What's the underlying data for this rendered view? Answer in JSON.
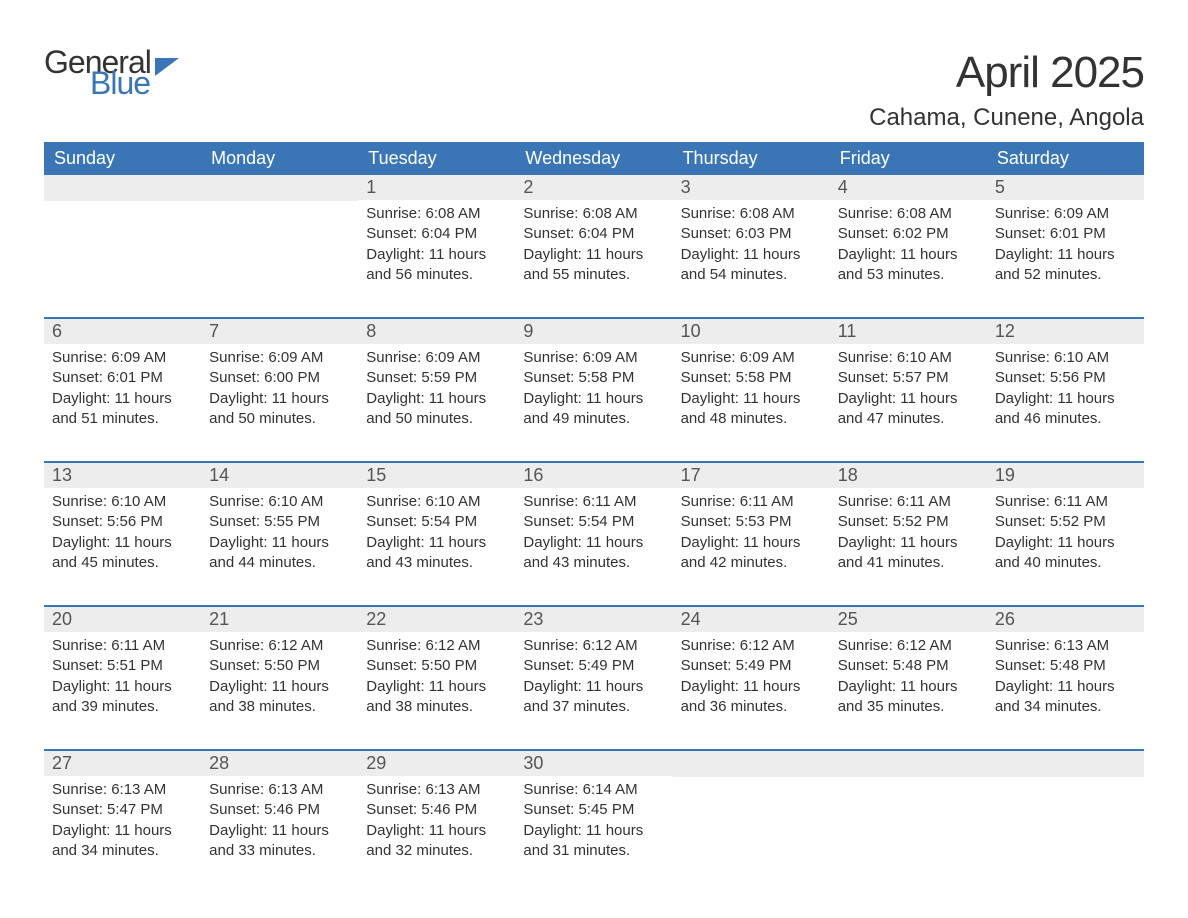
{
  "logo": {
    "text1": "General",
    "text2": "Blue"
  },
  "title": "April 2025",
  "location": "Cahama, Cunene, Angola",
  "header_bg": "#3a76b5",
  "header_fg": "#ffffff",
  "daynum_bg": "#ededed",
  "week_border": "#3a76b5",
  "text_color": "#333333",
  "dow": [
    "Sunday",
    "Monday",
    "Tuesday",
    "Wednesday",
    "Thursday",
    "Friday",
    "Saturday"
  ],
  "weeks": [
    [
      null,
      null,
      {
        "n": "1",
        "sr": "Sunrise: 6:08 AM",
        "ss": "Sunset: 6:04 PM",
        "d1": "Daylight: 11 hours",
        "d2": "and 56 minutes."
      },
      {
        "n": "2",
        "sr": "Sunrise: 6:08 AM",
        "ss": "Sunset: 6:04 PM",
        "d1": "Daylight: 11 hours",
        "d2": "and 55 minutes."
      },
      {
        "n": "3",
        "sr": "Sunrise: 6:08 AM",
        "ss": "Sunset: 6:03 PM",
        "d1": "Daylight: 11 hours",
        "d2": "and 54 minutes."
      },
      {
        "n": "4",
        "sr": "Sunrise: 6:08 AM",
        "ss": "Sunset: 6:02 PM",
        "d1": "Daylight: 11 hours",
        "d2": "and 53 minutes."
      },
      {
        "n": "5",
        "sr": "Sunrise: 6:09 AM",
        "ss": "Sunset: 6:01 PM",
        "d1": "Daylight: 11 hours",
        "d2": "and 52 minutes."
      }
    ],
    [
      {
        "n": "6",
        "sr": "Sunrise: 6:09 AM",
        "ss": "Sunset: 6:01 PM",
        "d1": "Daylight: 11 hours",
        "d2": "and 51 minutes."
      },
      {
        "n": "7",
        "sr": "Sunrise: 6:09 AM",
        "ss": "Sunset: 6:00 PM",
        "d1": "Daylight: 11 hours",
        "d2": "and 50 minutes."
      },
      {
        "n": "8",
        "sr": "Sunrise: 6:09 AM",
        "ss": "Sunset: 5:59 PM",
        "d1": "Daylight: 11 hours",
        "d2": "and 50 minutes."
      },
      {
        "n": "9",
        "sr": "Sunrise: 6:09 AM",
        "ss": "Sunset: 5:58 PM",
        "d1": "Daylight: 11 hours",
        "d2": "and 49 minutes."
      },
      {
        "n": "10",
        "sr": "Sunrise: 6:09 AM",
        "ss": "Sunset: 5:58 PM",
        "d1": "Daylight: 11 hours",
        "d2": "and 48 minutes."
      },
      {
        "n": "11",
        "sr": "Sunrise: 6:10 AM",
        "ss": "Sunset: 5:57 PM",
        "d1": "Daylight: 11 hours",
        "d2": "and 47 minutes."
      },
      {
        "n": "12",
        "sr": "Sunrise: 6:10 AM",
        "ss": "Sunset: 5:56 PM",
        "d1": "Daylight: 11 hours",
        "d2": "and 46 minutes."
      }
    ],
    [
      {
        "n": "13",
        "sr": "Sunrise: 6:10 AM",
        "ss": "Sunset: 5:56 PM",
        "d1": "Daylight: 11 hours",
        "d2": "and 45 minutes."
      },
      {
        "n": "14",
        "sr": "Sunrise: 6:10 AM",
        "ss": "Sunset: 5:55 PM",
        "d1": "Daylight: 11 hours",
        "d2": "and 44 minutes."
      },
      {
        "n": "15",
        "sr": "Sunrise: 6:10 AM",
        "ss": "Sunset: 5:54 PM",
        "d1": "Daylight: 11 hours",
        "d2": "and 43 minutes."
      },
      {
        "n": "16",
        "sr": "Sunrise: 6:11 AM",
        "ss": "Sunset: 5:54 PM",
        "d1": "Daylight: 11 hours",
        "d2": "and 43 minutes."
      },
      {
        "n": "17",
        "sr": "Sunrise: 6:11 AM",
        "ss": "Sunset: 5:53 PM",
        "d1": "Daylight: 11 hours",
        "d2": "and 42 minutes."
      },
      {
        "n": "18",
        "sr": "Sunrise: 6:11 AM",
        "ss": "Sunset: 5:52 PM",
        "d1": "Daylight: 11 hours",
        "d2": "and 41 minutes."
      },
      {
        "n": "19",
        "sr": "Sunrise: 6:11 AM",
        "ss": "Sunset: 5:52 PM",
        "d1": "Daylight: 11 hours",
        "d2": "and 40 minutes."
      }
    ],
    [
      {
        "n": "20",
        "sr": "Sunrise: 6:11 AM",
        "ss": "Sunset: 5:51 PM",
        "d1": "Daylight: 11 hours",
        "d2": "and 39 minutes."
      },
      {
        "n": "21",
        "sr": "Sunrise: 6:12 AM",
        "ss": "Sunset: 5:50 PM",
        "d1": "Daylight: 11 hours",
        "d2": "and 38 minutes."
      },
      {
        "n": "22",
        "sr": "Sunrise: 6:12 AM",
        "ss": "Sunset: 5:50 PM",
        "d1": "Daylight: 11 hours",
        "d2": "and 38 minutes."
      },
      {
        "n": "23",
        "sr": "Sunrise: 6:12 AM",
        "ss": "Sunset: 5:49 PM",
        "d1": "Daylight: 11 hours",
        "d2": "and 37 minutes."
      },
      {
        "n": "24",
        "sr": "Sunrise: 6:12 AM",
        "ss": "Sunset: 5:49 PM",
        "d1": "Daylight: 11 hours",
        "d2": "and 36 minutes."
      },
      {
        "n": "25",
        "sr": "Sunrise: 6:12 AM",
        "ss": "Sunset: 5:48 PM",
        "d1": "Daylight: 11 hours",
        "d2": "and 35 minutes."
      },
      {
        "n": "26",
        "sr": "Sunrise: 6:13 AM",
        "ss": "Sunset: 5:48 PM",
        "d1": "Daylight: 11 hours",
        "d2": "and 34 minutes."
      }
    ],
    [
      {
        "n": "27",
        "sr": "Sunrise: 6:13 AM",
        "ss": "Sunset: 5:47 PM",
        "d1": "Daylight: 11 hours",
        "d2": "and 34 minutes."
      },
      {
        "n": "28",
        "sr": "Sunrise: 6:13 AM",
        "ss": "Sunset: 5:46 PM",
        "d1": "Daylight: 11 hours",
        "d2": "and 33 minutes."
      },
      {
        "n": "29",
        "sr": "Sunrise: 6:13 AM",
        "ss": "Sunset: 5:46 PM",
        "d1": "Daylight: 11 hours",
        "d2": "and 32 minutes."
      },
      {
        "n": "30",
        "sr": "Sunrise: 6:14 AM",
        "ss": "Sunset: 5:45 PM",
        "d1": "Daylight: 11 hours",
        "d2": "and 31 minutes."
      },
      null,
      null,
      null
    ]
  ]
}
